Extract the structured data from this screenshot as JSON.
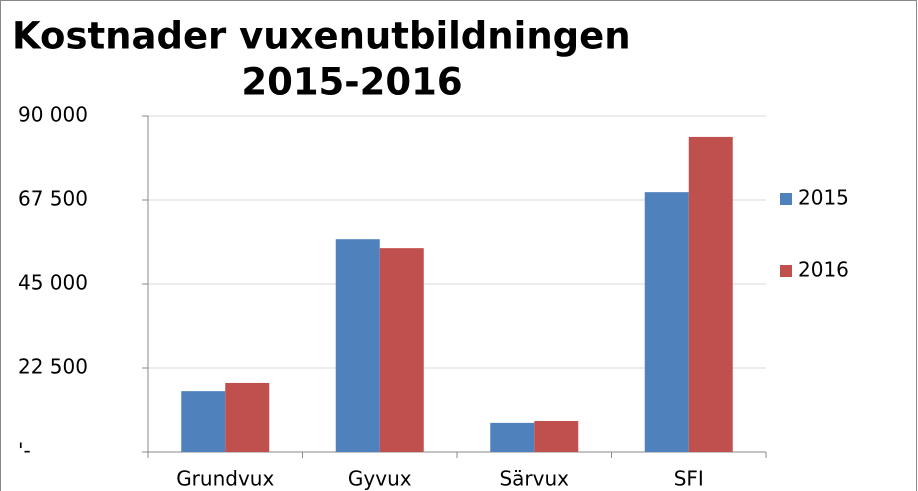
{
  "chart_data": {
    "type": "bar",
    "title": [
      "Kostnader vuxenutbildningen",
      "2015-2016"
    ],
    "categories": [
      "Grundvux",
      "Gyvux",
      "Särvux",
      "SFI"
    ],
    "series": [
      {
        "name": "2015",
        "color": "#4f81bd",
        "values": [
          16300,
          57000,
          7800,
          69600
        ]
      },
      {
        "name": "2016",
        "color": "#c0504d",
        "values": [
          18500,
          54600,
          8300,
          84400
        ]
      }
    ],
    "ylim": [
      0,
      90000
    ],
    "yticks": [
      {
        "value": 0,
        "label": "'-"
      },
      {
        "value": 22500,
        "label": "22 500"
      },
      {
        "value": 45000,
        "label": "45 000"
      },
      {
        "value": 67500,
        "label": "67 500"
      },
      {
        "value": 90000,
        "label": "90 000"
      }
    ],
    "grid": true,
    "legend": "right"
  }
}
